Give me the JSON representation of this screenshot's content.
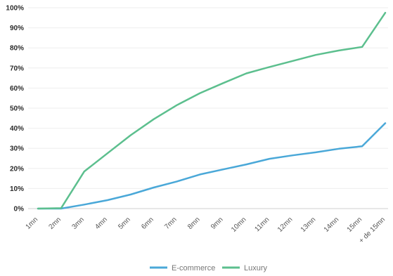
{
  "chart_data": {
    "type": "line",
    "categories": [
      "1mn",
      "2mn",
      "3mn",
      "4mn",
      "5mn",
      "6mn",
      "7mn",
      "8mn",
      "9mn",
      "10mn",
      "11mn",
      "12mn",
      "13mn",
      "14mn",
      "15mn",
      "+ de 15mn"
    ],
    "y_ticks": [
      "0%",
      "10%",
      "20%",
      "30%",
      "40%",
      "50%",
      "60%",
      "70%",
      "80%",
      "90%",
      "100%"
    ],
    "ylim": [
      0,
      100
    ],
    "grid": true,
    "legend_position": "bottom",
    "series": [
      {
        "name": "E-commerce",
        "color": "#4aa8d8",
        "values": [
          0,
          0,
          2,
          4.2,
          7,
          10.5,
          13.5,
          17,
          19.5,
          22,
          24.8,
          26.5,
          28,
          29.8,
          31,
          42.5
        ]
      },
      {
        "name": "Luxury",
        "color": "#5cbf8e",
        "values": [
          0,
          0.2,
          18.5,
          27.5,
          36.5,
          44.5,
          51.5,
          57.5,
          62.5,
          67.3,
          70.5,
          73.5,
          76.5,
          78.7,
          80.5,
          97.5
        ]
      }
    ]
  }
}
